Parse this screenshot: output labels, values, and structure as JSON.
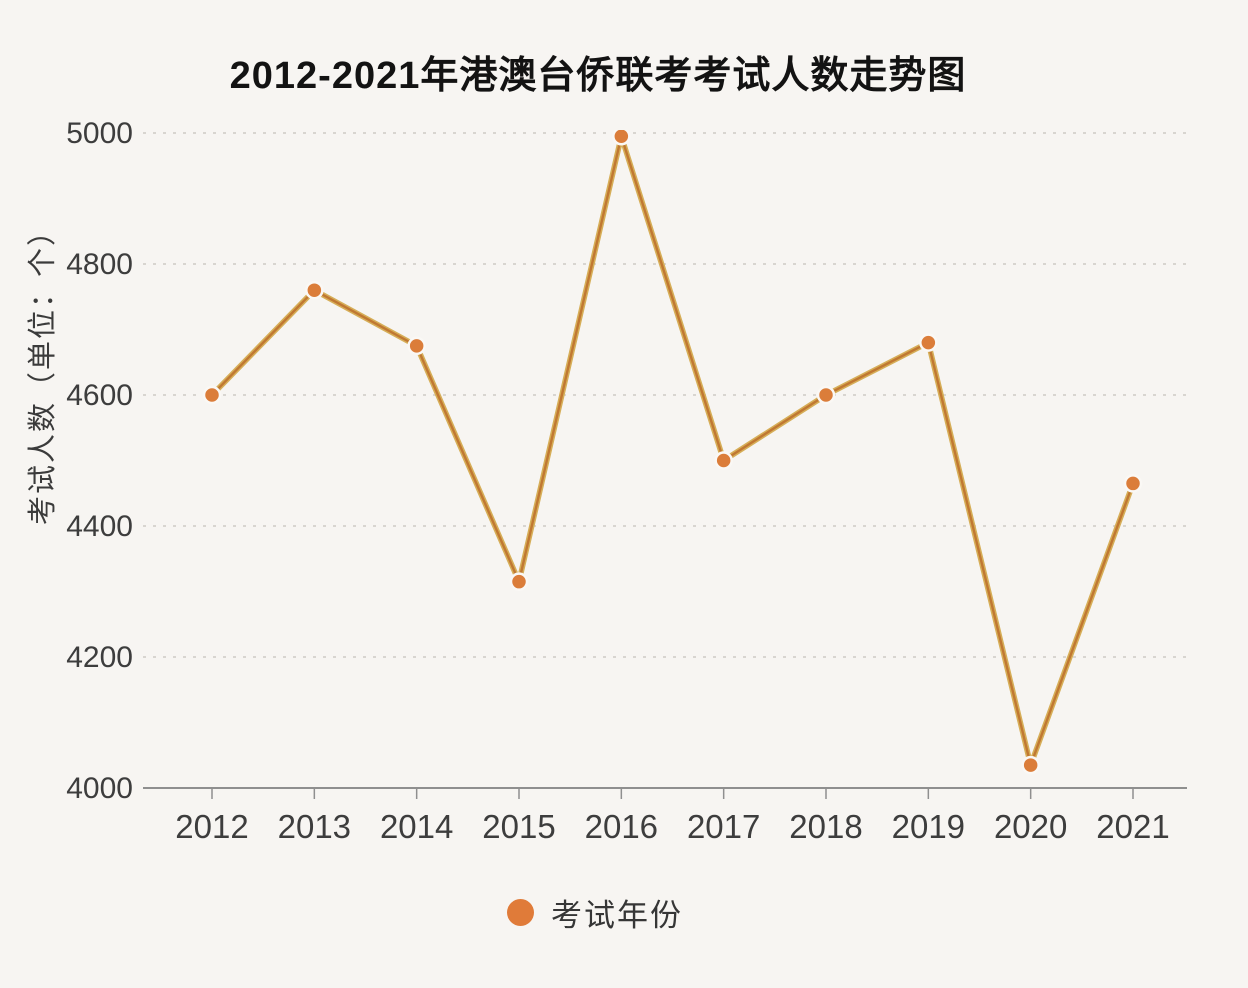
{
  "page": {
    "background": "#f7f5f2"
  },
  "chart_data": {
    "type": "line",
    "title": "2012-2021年港澳台侨联考考试人数走势图",
    "ylabel": "考试人数（单位：个）",
    "xlabel": "",
    "categories": [
      "2012",
      "2013",
      "2014",
      "2015",
      "2016",
      "2017",
      "2018",
      "2019",
      "2020",
      "2021"
    ],
    "series": [
      {
        "name": "考试年份",
        "values": [
          4600,
          4760,
          4675,
          4315,
          4995,
          4500,
          4600,
          4680,
          4035,
          4465
        ]
      }
    ],
    "ylim": [
      4000,
      5000
    ],
    "yticks": [
      4000,
      4200,
      4400,
      4600,
      4800,
      5000
    ],
    "grid": "horizontal dashed, baseline solid axis",
    "legend_position": "bottom-center",
    "colors": {
      "background": "#f7f5f2",
      "title": "#131313",
      "tick_label": "#3d3d3d",
      "axis": "#8f8f8f",
      "grid": "#d8d5d0",
      "line_outer": "#d6ae58",
      "line_inner": "#c07832",
      "marker": "#db7d3a",
      "marker_ring": "#faf8f5",
      "legend_dot": "#e07b39"
    }
  },
  "legend": {
    "label": "考试年份",
    "marker_icon": "circle-icon"
  }
}
